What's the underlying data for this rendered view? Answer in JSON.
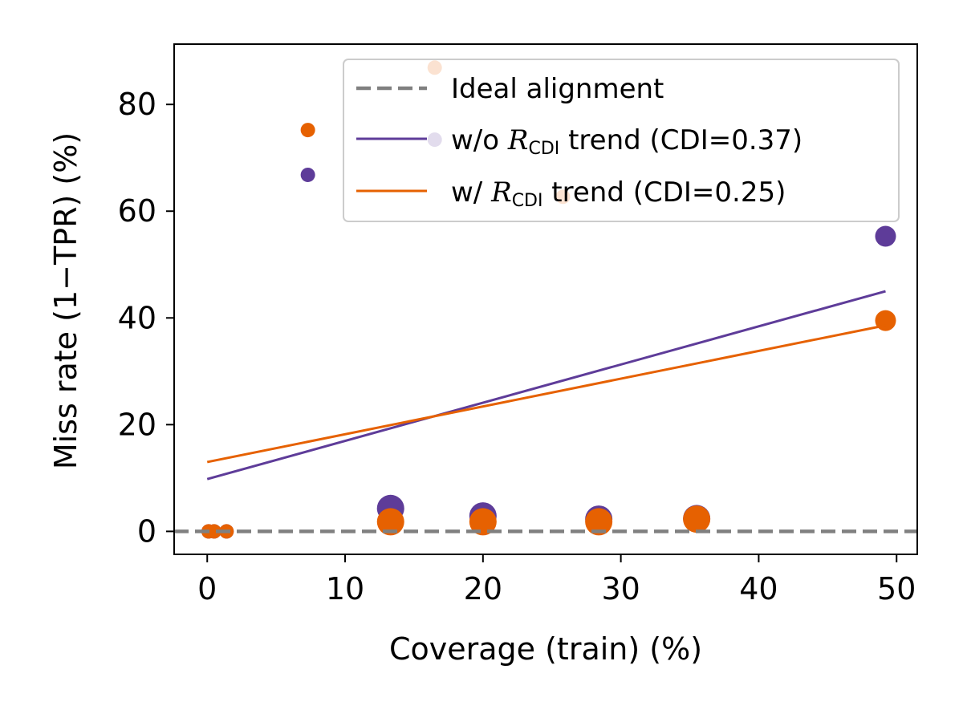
{
  "chart_data": {
    "type": "scatter",
    "xlabel": "Coverage (train) (%)",
    "ylabel": "Miss rate (1−TPR) (%)",
    "xlim": [
      -2.4,
      51.5
    ],
    "ylim": [
      -4.3,
      91.3
    ],
    "xticks": [
      0,
      10,
      20,
      30,
      40,
      50
    ],
    "yticks": [
      0,
      20,
      40,
      60,
      80
    ],
    "legend_position": "top-right",
    "colors": {
      "without": "#5e3c99",
      "with": "#e66101",
      "ideal": "#808080"
    },
    "ideal_line": {
      "name": "Ideal alignment",
      "y": 0
    },
    "series": [
      {
        "key": "without",
        "legend_prefix": "w/o ",
        "legend_suffix": " trend (CDI=0.37)",
        "points": [
          {
            "x": 0.1,
            "y": 0,
            "size": "small"
          },
          {
            "x": 0.5,
            "y": 0,
            "size": "small"
          },
          {
            "x": 1.4,
            "y": 0,
            "size": "small"
          },
          {
            "x": 7.3,
            "y": 66.8,
            "size": "small"
          },
          {
            "x": 13.3,
            "y": 4.3,
            "size": "large"
          },
          {
            "x": 16.5,
            "y": 73.4,
            "size": "small"
          },
          {
            "x": 20.0,
            "y": 2.9,
            "size": "large"
          },
          {
            "x": 28.4,
            "y": 2.3,
            "size": "large"
          },
          {
            "x": 35.5,
            "y": 2.4,
            "size": "large"
          },
          {
            "x": 49.2,
            "y": 55.3,
            "size": "medium"
          }
        ],
        "trend": {
          "x": [
            0,
            49.2
          ],
          "y": [
            9.8,
            45.0
          ]
        }
      },
      {
        "key": "with",
        "legend_prefix": "w/ ",
        "legend_suffix": " trend (CDI=0.25)",
        "points": [
          {
            "x": 0.1,
            "y": 0,
            "size": "small"
          },
          {
            "x": 0.5,
            "y": 0,
            "size": "small"
          },
          {
            "x": 1.4,
            "y": 0,
            "size": "small"
          },
          {
            "x": 7.3,
            "y": 75.2,
            "size": "small"
          },
          {
            "x": 13.3,
            "y": 1.8,
            "size": "large"
          },
          {
            "x": 16.5,
            "y": 86.9,
            "size": "small"
          },
          {
            "x": 20.0,
            "y": 1.8,
            "size": "large"
          },
          {
            "x": 25.8,
            "y": 62.7,
            "size": "small"
          },
          {
            "x": 28.4,
            "y": 1.8,
            "size": "large"
          },
          {
            "x": 35.5,
            "y": 2.3,
            "size": "large"
          },
          {
            "x": 49.2,
            "y": 39.5,
            "size": "medium"
          }
        ],
        "trend": {
          "x": [
            0,
            49.2
          ],
          "y": [
            13.0,
            38.6
          ]
        }
      }
    ],
    "legend_symbol": {
      "script": "R",
      "sub": "CDI"
    }
  }
}
